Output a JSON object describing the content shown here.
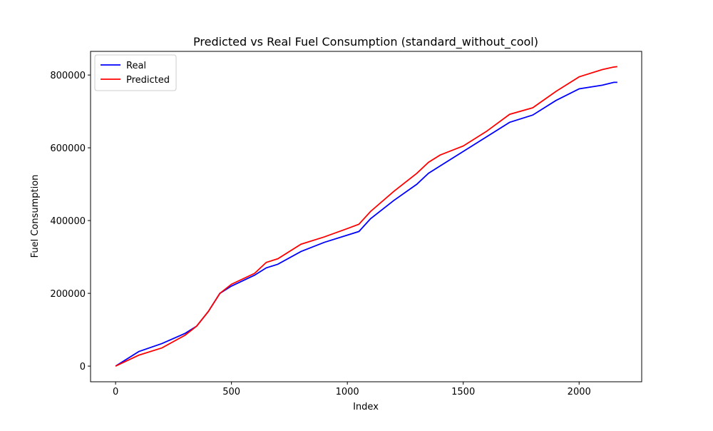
{
  "chart_data": {
    "type": "line",
    "title": "Predicted vs Real Fuel Consumption (standard_without_cool)",
    "xlabel": "Index",
    "ylabel": "Fuel Consumption",
    "x": [
      0,
      100,
      200,
      300,
      350,
      400,
      450,
      500,
      600,
      650,
      700,
      800,
      900,
      1000,
      1050,
      1100,
      1200,
      1300,
      1350,
      1400,
      1500,
      1600,
      1700,
      1800,
      1900,
      2000,
      2100,
      2150,
      2165
    ],
    "series": [
      {
        "name": "Real",
        "color": "#0000ff",
        "values": [
          0,
          40000,
          62000,
          90000,
          110000,
          150000,
          200000,
          220000,
          250000,
          270000,
          280000,
          315000,
          340000,
          360000,
          370000,
          405000,
          455000,
          500000,
          530000,
          550000,
          590000,
          630000,
          670000,
          690000,
          730000,
          762000,
          772000,
          780000,
          780000
        ]
      },
      {
        "name": "Predicted",
        "color": "#ff0000",
        "values": [
          0,
          30000,
          50000,
          85000,
          110000,
          150000,
          200000,
          225000,
          255000,
          285000,
          295000,
          335000,
          355000,
          378000,
          390000,
          425000,
          480000,
          530000,
          560000,
          580000,
          605000,
          645000,
          692000,
          710000,
          755000,
          795000,
          815000,
          822000,
          823000
        ]
      }
    ],
    "xlim": [
      -108,
      2270
    ],
    "ylim": [
      -43000,
      865000
    ],
    "xticks": [
      0,
      500,
      1000,
      1500,
      2000
    ],
    "yticks": [
      0,
      200000,
      400000,
      600000,
      800000
    ],
    "legend": "upper left"
  }
}
